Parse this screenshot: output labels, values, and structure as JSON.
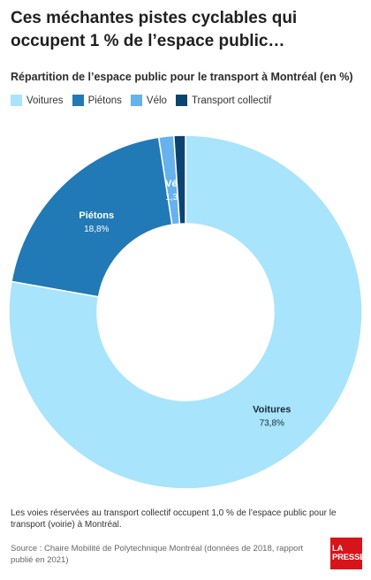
{
  "header": {
    "title": "Ces méchantes pistes cyclables qui occupent 1 % de l’espace public…",
    "subtitle": "Répartition de l’espace public pour le transport à Montréal (en %)"
  },
  "legend": [
    {
      "label": "Voitures",
      "color": "#a8e4fb"
    },
    {
      "label": "Piétons",
      "color": "#2179b5"
    },
    {
      "label": "Vélo",
      "color": "#66b2ec"
    },
    {
      "label": "Transport collectif",
      "color": "#0c4471"
    }
  ],
  "chart_data": {
    "type": "pie",
    "variant": "donut",
    "slices": [
      {
        "label": "Voitures",
        "value": 73.8,
        "value_label": "73,8%",
        "color": "#a8e4fb"
      },
      {
        "label": "Piétons",
        "value": 18.8,
        "value_label": "18,8%",
        "color": "#2179b5"
      },
      {
        "label": "Vélo",
        "value": 1.3,
        "value_label": "1,3%",
        "color": "#66b2ec"
      },
      {
        "label": "Transport collectif",
        "value": 1.0,
        "value_label": "",
        "color": "#0c4471"
      }
    ],
    "start_at": "top",
    "direction": "clockwise",
    "legend_position": "top-left"
  },
  "footer": {
    "note": "Les voies réservées au transport collectif occupent 1,0 % de l’espace public pour le transport (voirie) à Montréal.",
    "source": "Source : Chaire Mobilité de Polytechnique Montréal (données de 2018, rapport publié en 2021)",
    "logo_line1": "LA",
    "logo_line2": "PRESSE"
  }
}
